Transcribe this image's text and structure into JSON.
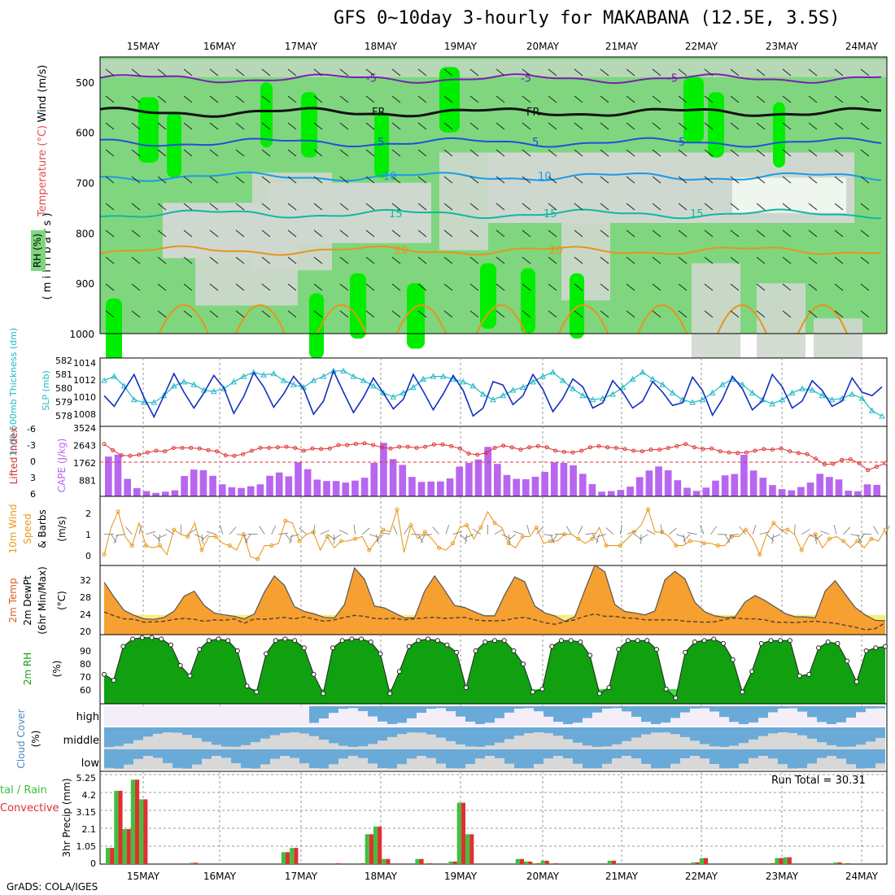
{
  "title": "GFS 0~10day 3-hourly for MAKABANA (12.5E, 3.5S)",
  "footer": "GrADS: COLA/IGES",
  "run_total": "Run Total = 30.31",
  "colors": {
    "rh_light": "#cfd8cf",
    "rh_mid": "#7fd67f",
    "rh_bright": "#00ee00",
    "temp_purple": "#7a1fb3",
    "temp_blue": "#1e50d8",
    "temp_lblue": "#1a9ae8",
    "temp_teal": "#10b8a0",
    "temp_orange": "#e8941a",
    "slp": "#1030c0",
    "thickness": "#20b8c8",
    "cape": "#b866f0",
    "lifted": "#e03030",
    "wind10": "#e89a20",
    "temp_fill": "#f5a030",
    "temp_dark": "#e0561a",
    "dewpt_fill": "#f4f07a",
    "rh2m": "#10a010",
    "cloud": "#6aaad8",
    "cloud_bg": "#d8d8d8",
    "rain": "#40c040",
    "conv": "#e03030"
  },
  "chart_data": [
    {
      "type": "heatmap",
      "panel": "upper-air",
      "title": "GFS 0~10day 3-hourly for MAKABANA (12.5E, 3.5S)",
      "ylabel": "(m i l l i b a r s)",
      "side_labels": [
        "Wind (m/s)",
        "Temperature (°C)",
        "RH (%)"
      ],
      "y_ticks": [
        500,
        600,
        700,
        800,
        900,
        1000
      ],
      "ylim": [
        1000,
        450
      ],
      "x_labels": [
        "15MAY",
        "16MAY",
        "17MAY",
        "18MAY",
        "19MAY",
        "20MAY",
        "21MAY",
        "22MAY",
        "23MAY",
        "24MAY"
      ],
      "contours": [
        {
          "label": "-5",
          "level_mb": 493
        },
        {
          "label": "FR",
          "level_mb": 560
        },
        {
          "label": "5",
          "level_mb": 620
        },
        {
          "label": "10",
          "level_mb": 688
        },
        {
          "label": "15",
          "level_mb": 762
        },
        {
          "label": "20",
          "level_mb": 835
        }
      ]
    },
    {
      "type": "line",
      "panel": "slp-thickness",
      "ylabel_left": "1000-500mb Thickness (dm)",
      "ylabel_right": "SLP (mb)",
      "left_ticks": [
        "582",
        "581",
        "580",
        "579",
        "578"
      ],
      "right_ticks": [
        "1014",
        "1012",
        "1010",
        "1008"
      ],
      "series": [
        {
          "name": "SLP (mb)",
          "values": [
            1010.6,
            1009.4,
            1011.2,
            1013.0,
            1010.4,
            1008.2,
            1010.6,
            1013.1,
            1011.0,
            1009.2,
            1010.9,
            1012.9,
            1011.5,
            1008.6,
            1010.5,
            1013.2,
            1011.6,
            1009.3,
            1010.8,
            1012.8,
            1011.4,
            1008.5,
            1010.0,
            1013.4,
            1011.0,
            1008.7,
            1010.4,
            1012.6,
            1010.9,
            1009.1,
            1010.2,
            1013.0,
            1011.1,
            1009.0,
            1010.8,
            1012.9,
            1011.2,
            1008.3,
            1009.2,
            1012.2,
            1011.8,
            1009.6,
            1010.6,
            1013.0,
            1011.3,
            1008.8,
            1010.3,
            1012.5,
            1011.6,
            1009.2,
            1009.8,
            1012.3,
            1011.0,
            1009.2,
            1010.0,
            1012.2,
            1011.0,
            1009.5,
            1009.8,
            1012.7,
            1011.2,
            1008.4,
            1010.2,
            1012.8,
            1011.4,
            1009.0,
            1010.0,
            1013.0,
            1011.6,
            1009.2,
            1010.0,
            1012.3,
            1011.2,
            1009.4,
            1010.0,
            1012.6,
            1011.0,
            1010.6,
            1011.6
          ]
        },
        {
          "name": "1000-500mb Thickness (dm)",
          "values": [
            580.9,
            581.2,
            580.5,
            579.5,
            579.3,
            579.3,
            579.8,
            580.5,
            580.8,
            580.6,
            580.2,
            580.1,
            580.3,
            580.8,
            581.2,
            581.5,
            581.3,
            581.4,
            580.9,
            580.6,
            580.4,
            580.9,
            581.2,
            581.6,
            581.6,
            581.2,
            580.9,
            580.5,
            580.0,
            579.7,
            580.0,
            580.4,
            581.0,
            581.2,
            581.2,
            581.0,
            580.8,
            580.5,
            579.9,
            579.5,
            579.8,
            580.2,
            580.4,
            580.8,
            581.2,
            581.5,
            580.9,
            580.3,
            579.8,
            579.5,
            579.6,
            579.9,
            580.4,
            581.0,
            581.5,
            581.0,
            580.6,
            580.0,
            579.5,
            579.3,
            579.5,
            580.0,
            580.6,
            581.0,
            580.6,
            580.0,
            579.5,
            579.2,
            579.5,
            580.0,
            580.3,
            580.2,
            579.8,
            579.5,
            579.6,
            579.9,
            579.6,
            578.7,
            578.3
          ]
        }
      ]
    },
    {
      "type": "bar",
      "panel": "cape-lifted-index",
      "ylabel_left": "Lifted Index",
      "ylabel_right": "CAPE (J/kg)",
      "left_ticks": [
        "-6",
        "-3",
        "0",
        "3",
        "6"
      ],
      "right_ticks": [
        "3524",
        "2643",
        "1762",
        "881"
      ],
      "series": [
        {
          "name": "CAPE (J/kg)",
          "values": [
            2050,
            2150,
            900,
            420,
            270,
            180,
            240,
            310,
            1050,
            1380,
            1350,
            1060,
            620,
            470,
            430,
            520,
            620,
            1060,
            1230,
            1030,
            1750,
            1400,
            860,
            790,
            790,
            710,
            810,
            960,
            1720,
            2760,
            1920,
            1620,
            1000,
            740,
            760,
            770,
            920,
            1530,
            1720,
            1900,
            2550,
            1670,
            1100,
            900,
            880,
            1010,
            1260,
            1750,
            1720,
            1600,
            1160,
            630,
            240,
            270,
            330,
            500,
            990,
            1330,
            1540,
            1340,
            830,
            440,
            280,
            450,
            810,
            1080,
            1150,
            2140,
            1330,
            960,
            580,
            370,
            310,
            480,
            710,
            1160,
            1000,
            870,
            290,
            260,
            620,
            590
          ]
        },
        {
          "name": "Lifted Index",
          "values": [
            -3.2,
            -2.1,
            -1.2,
            -1.1,
            -1.3,
            -1.7,
            -2.0,
            -1.9,
            -2.5,
            -2.5,
            -2.5,
            -2.4,
            -2.1,
            -1.9,
            -1.2,
            -1.1,
            -1.4,
            -2.0,
            -2.5,
            -2.5,
            -2.6,
            -2.7,
            -2.5,
            -2.0,
            -2.4,
            -2.3,
            -2.4,
            -3.0,
            -3.0,
            -3.2,
            -3.3,
            -3.0,
            -2.6,
            -2.4,
            -2.7,
            -2.7,
            -2.5,
            -2.7,
            -3.1,
            -3.1,
            -2.8,
            -2.4,
            -1.5,
            -1.3,
            -1.6,
            -2.5,
            -2.9,
            -2.6,
            -2.2,
            -2.6,
            -2.8,
            -2.6,
            -2.0,
            -1.8,
            -1.7,
            -2.0,
            -2.6,
            -2.8,
            -2.6,
            -2.5,
            -2.3,
            -2.0,
            -1.9,
            -2.2,
            -2.2,
            -2.5,
            -2.8,
            -3.2,
            -2.6,
            -2.3,
            -2.4,
            -1.9,
            -1.7,
            -1.6,
            -1.7,
            -2.0,
            -2.3,
            -2.2,
            -2.4,
            -1.9,
            -1.6,
            -1.4,
            -0.6,
            0.4,
            0.3,
            -0.4,
            -0.5,
            0.2,
            1.4,
            0.8,
            0.2
          ]
        }
      ]
    },
    {
      "type": "line",
      "panel": "wind10m",
      "ylabel": "10m Wind Speed & Barbs (m/s)",
      "y_ticks": [
        "2",
        "1",
        "0"
      ],
      "ylim": [
        0,
        2.7
      ],
      "series": [
        {
          "name": "10m Wind Speed",
          "values": [
            0.3,
            1.5,
            2.2,
            1.1,
            0.7,
            1.7,
            0.7,
            0.6,
            0.7,
            0.3,
            1.4,
            1.2,
            1.1,
            1.7,
            0.5,
            1.1,
            1.1,
            0.8,
            0.7,
            0.5,
            1.2,
            0.2,
            0.1,
            0.7,
            0.7,
            0.8,
            1.8,
            1.7,
            0.9,
            1.2,
            1.3,
            0.5,
            1.1,
            0.6,
            0.9,
            0.9,
            1.0,
            1.1,
            0.5,
            0.9,
            1.4,
            1.3,
            2.3,
            0.4,
            1.6,
            1.0,
            1.3,
            1.0,
            0.6,
            0.5,
            0.8,
            1.5,
            1.6,
            1.0,
            1.5,
            2.2,
            1.7,
            1.5,
            0.8,
            0.6,
            1.1,
            1.1,
            1.5,
            0.8,
            0.9,
            0.9,
            1.2,
            1.2,
            1.0,
            0.8,
            1.0,
            1.5,
            0.7,
            0.7,
            0.7,
            1.0,
            1.3,
            1.6,
            2.3,
            1.3,
            1.3,
            1.1,
            0.7,
            0.7,
            0.9,
            0.9,
            0.8,
            0.8,
            0.7,
            0.7,
            1.1,
            1.1,
            1.4,
            1.0,
            0.3,
            1.2,
            1.7,
            1.4,
            1.4,
            1.2,
            0.5,
            1.1,
            1.2,
            0.6,
            1.0,
            1.1,
            0.9,
            0.6,
            0.9,
            0.6,
            1.0,
            0.9,
            1.4
          ]
        }
      ]
    },
    {
      "type": "area",
      "panel": "temp2m",
      "ylabel": "2m Temp 2m DewPt (6hr Min/Max) (°C)",
      "y_ticks": [
        "32",
        "28",
        "24",
        "20"
      ],
      "ylim": [
        20,
        34
      ],
      "series": [
        {
          "name": "2m Temp",
          "values": [
            30.6,
            27.6,
            24.9,
            23.9,
            23.2,
            23.1,
            23.5,
            24.8,
            27.8,
            28.8,
            25.9,
            24.4,
            24.0,
            23.7,
            23.2,
            24.2,
            28.6,
            31.9,
            30.0,
            25.7,
            24.7,
            24.2,
            23.5,
            23.4,
            26.1,
            33.5,
            31.2,
            25.8,
            25.4,
            24.4,
            23.4,
            23.4,
            28.8,
            31.9,
            29.0,
            25.9,
            25.5,
            24.6,
            23.8,
            23.8,
            28.1,
            31.7,
            30.7,
            25.8,
            24.4,
            23.8,
            22.7,
            23.6,
            29.0,
            34.1,
            32.7,
            26.1,
            24.7,
            24.4,
            24.0,
            24.8,
            31.1,
            32.8,
            31.3,
            26.5,
            24.6,
            23.8,
            23.5,
            23.6,
            26.6,
            27.9,
            26.9,
            25.6,
            24.3,
            23.6,
            23.6,
            23.4,
            28.8,
            30.9,
            28.2,
            25.5,
            24.0,
            22.9,
            22.8
          ]
        },
        {
          "name": "2m DewPt",
          "values": [
            24.6,
            23.8,
            23.2,
            23.1,
            22.5,
            22.6,
            22.7,
            23.1,
            23.3,
            23.1,
            22.7,
            23.0,
            22.9,
            23.2,
            22.3,
            23.2,
            23.1,
            23.3,
            23.5,
            23.2,
            23.6,
            23.1,
            22.7,
            23.0,
            23.5,
            23.9,
            23.7,
            23.3,
            23.2,
            23.3,
            23.0,
            23.2,
            23.4,
            23.5,
            23.3,
            23.4,
            23.5,
            23.0,
            22.8,
            22.8,
            22.9,
            23.3,
            23.5,
            23.0,
            22.4,
            22.1,
            22.6,
            23.0,
            23.7,
            24.2,
            23.7,
            23.7,
            23.4,
            23.3,
            23.0,
            23.0,
            23.0,
            23.0,
            22.7,
            22.6,
            22.5,
            22.6,
            23.1,
            23.4,
            23.2,
            23.2,
            23.0,
            22.5,
            22.5,
            22.4,
            22.6,
            22.7,
            22.5,
            22.3,
            21.9,
            21.5,
            21.0,
            21.2,
            22.4
          ]
        }
      ]
    },
    {
      "type": "area",
      "panel": "rh2m",
      "ylabel": "2m RH (%)",
      "y_ticks": [
        "90",
        "80",
        "70",
        "60"
      ],
      "ylim": [
        52,
        99
      ],
      "series": [
        {
          "name": "2m RH",
          "values": [
            72,
            68,
            91,
            96,
            97,
            97,
            96,
            92,
            78,
            71,
            89,
            95,
            96,
            95,
            88,
            64,
            60,
            86,
            95,
            96,
            95,
            90,
            72,
            59,
            90,
            95,
            96,
            96,
            94,
            86,
            59,
            74,
            91,
            95,
            96,
            95,
            92,
            87,
            63,
            88,
            94,
            95,
            95,
            88,
            79,
            60,
            62,
            91,
            95,
            95,
            94,
            85,
            59,
            63,
            89,
            95,
            95,
            95,
            89,
            62,
            56,
            87,
            94,
            95,
            96,
            93,
            82,
            60,
            74,
            93,
            95,
            95,
            95,
            71,
            72,
            90,
            94,
            93,
            81,
            67,
            88,
            90,
            91
          ]
        }
      ]
    },
    {
      "type": "heatmap",
      "panel": "cloud-cover",
      "ylabel": "Cloud Cover (%)",
      "levels": [
        "high",
        "middle",
        "low"
      ]
    },
    {
      "type": "bar",
      "panel": "precip",
      "ylabel": "3hr Precip (mm)",
      "side_labels": [
        "Total / Rain",
        "Convective"
      ],
      "y_ticks": [
        "5.25",
        "4.2",
        "3.15",
        "2.1",
        "1.05",
        "0"
      ],
      "ylim": [
        0,
        5.25
      ],
      "series": [
        {
          "name": "Total / Rain",
          "values": [
            0.95,
            4.3,
            2.05,
            4.95,
            3.8,
            0,
            0,
            0,
            0,
            0,
            0.08,
            0,
            0,
            0,
            0,
            0,
            0,
            0,
            0,
            0,
            0,
            0.7,
            0.95,
            0,
            0,
            0,
            0,
            0.05,
            0,
            0,
            0.05,
            1.75,
            2.2,
            0.3,
            0,
            0,
            0,
            0.3,
            0.05,
            0,
            0,
            0.15,
            3.6,
            1.75,
            0,
            0,
            0,
            0,
            0,
            0.3,
            0.15,
            0.05,
            0.2,
            0.05,
            0,
            0,
            0,
            0,
            0,
            0,
            0.2,
            0,
            0,
            0,
            0,
            0,
            0,
            0,
            0,
            0,
            0.1,
            0.35,
            0,
            0,
            0,
            0,
            0,
            0,
            0,
            0.05,
            0.35,
            0.4,
            0,
            0,
            0,
            0,
            0,
            0.1,
            0.05,
            0,
            0,
            0,
            0
          ]
        }
      ]
    }
  ],
  "panel_labels": {
    "upper_ylabel": "( m i l l i b a r s )",
    "wind_label": "Wind (m/s)",
    "temp_label": "Temperature (°C)",
    "rh_label": "RH (%)",
    "thick_label": "1000-500mb Thickness (dm)",
    "slp_label": "SLP (mb)",
    "lifted_label": "Lifted Index",
    "cape_label": "CAPE (J/kg)",
    "wind10_label1": "10m Wind",
    "wind10_label2": "Speed",
    "wind10_label3": "& Barbs",
    "wind10_label4": "(m/s)",
    "temp2m_label1": "2m Temp",
    "temp2m_label2": "2m DewPt",
    "temp2m_label3": "(6hr Min/Max)",
    "temp2m_label4": "(°C)",
    "rh2m_label": "2m RH",
    "pct_label": "(%)",
    "cloud_label": "Cloud Cover",
    "cloud_pct": "(%)",
    "high": "high",
    "middle": "middle",
    "low": "low",
    "precip_label": "3hr Precip (mm)",
    "total_rain": "tal / Rain",
    "convective": "Convective"
  }
}
